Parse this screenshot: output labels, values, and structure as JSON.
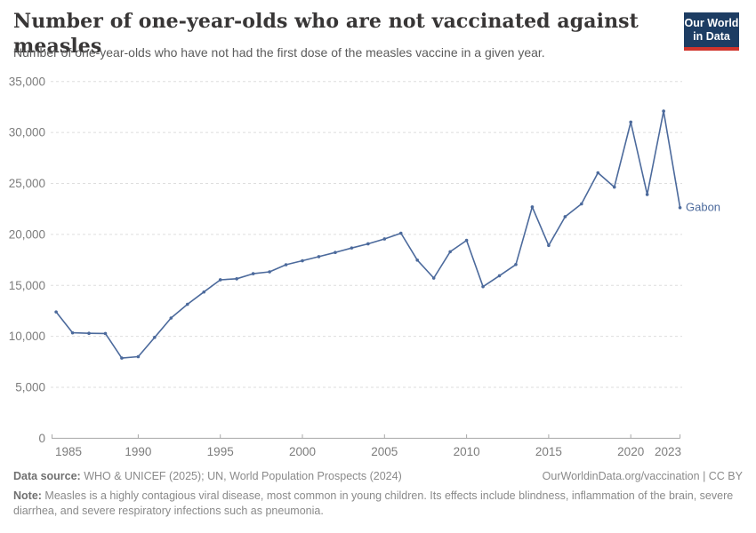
{
  "header": {
    "title": "Number of one-year-olds who are not vaccinated against measles",
    "subtitle": "Number of one-year-olds who have not had the first dose of the measles vaccine in a given year.",
    "logo": {
      "line1": "Our World",
      "line2": "in Data"
    }
  },
  "chart_data": {
    "type": "line",
    "title": "Number of one-year-olds who are not vaccinated against measles",
    "series": [
      {
        "name": "Gabon",
        "x": [
          1985,
          1986,
          1987,
          1988,
          1989,
          1990,
          1991,
          1992,
          1993,
          1994,
          1995,
          1996,
          1997,
          1998,
          1999,
          2000,
          2001,
          2002,
          2003,
          2004,
          2005,
          2006,
          2007,
          2008,
          2009,
          2010,
          2011,
          2012,
          2013,
          2014,
          2015,
          2016,
          2017,
          2018,
          2019,
          2020,
          2021,
          2022,
          2023
        ],
        "values": [
          12400,
          10350,
          10300,
          10280,
          7870,
          8010,
          9900,
          11800,
          13150,
          14350,
          15550,
          15650,
          16150,
          16330,
          17030,
          17420,
          17820,
          18230,
          18670,
          19080,
          19560,
          20120,
          17480,
          15720,
          18300,
          19420,
          14880,
          15950,
          17050,
          22700,
          18920,
          21740,
          23000,
          26050,
          24650,
          31020,
          23920,
          32100,
          22630
        ]
      }
    ],
    "xlabel": "",
    "ylabel": "",
    "ylim": [
      0,
      35000
    ],
    "yticks": [
      0,
      5000,
      10000,
      15000,
      20000,
      25000,
      30000,
      35000
    ],
    "xticks": [
      1985,
      1990,
      1995,
      2000,
      2005,
      2010,
      2015,
      2020,
      2023
    ],
    "grid": "horizontal-dashed",
    "legend_position": "end-of-line-label",
    "entity_label": "Gabon"
  },
  "colors": {
    "line": "#4c6a9c",
    "entity_label": "#4c6a9c",
    "grid": "#dedede",
    "axis": "#a8a8a8",
    "tick_label": "#7d7d7d",
    "title": "#383636",
    "subtitle": "#5b5b5b",
    "footer": "#8a8a8a",
    "logo_bg": "#1d3d63",
    "logo_accent": "#d0342c"
  },
  "footer": {
    "source_label": "Data source:",
    "source_text": " WHO & UNICEF (2025); UN, World Population Prospects (2024)",
    "link_text": "OurWorldinData.org/vaccination | CC BY",
    "note_label": "Note:",
    "note_text": " Measles is a highly contagious viral disease, most common in young children. Its effects include blindness, inflammation of the brain, severe diarrhea, and severe respiratory infections such as pneumonia."
  }
}
